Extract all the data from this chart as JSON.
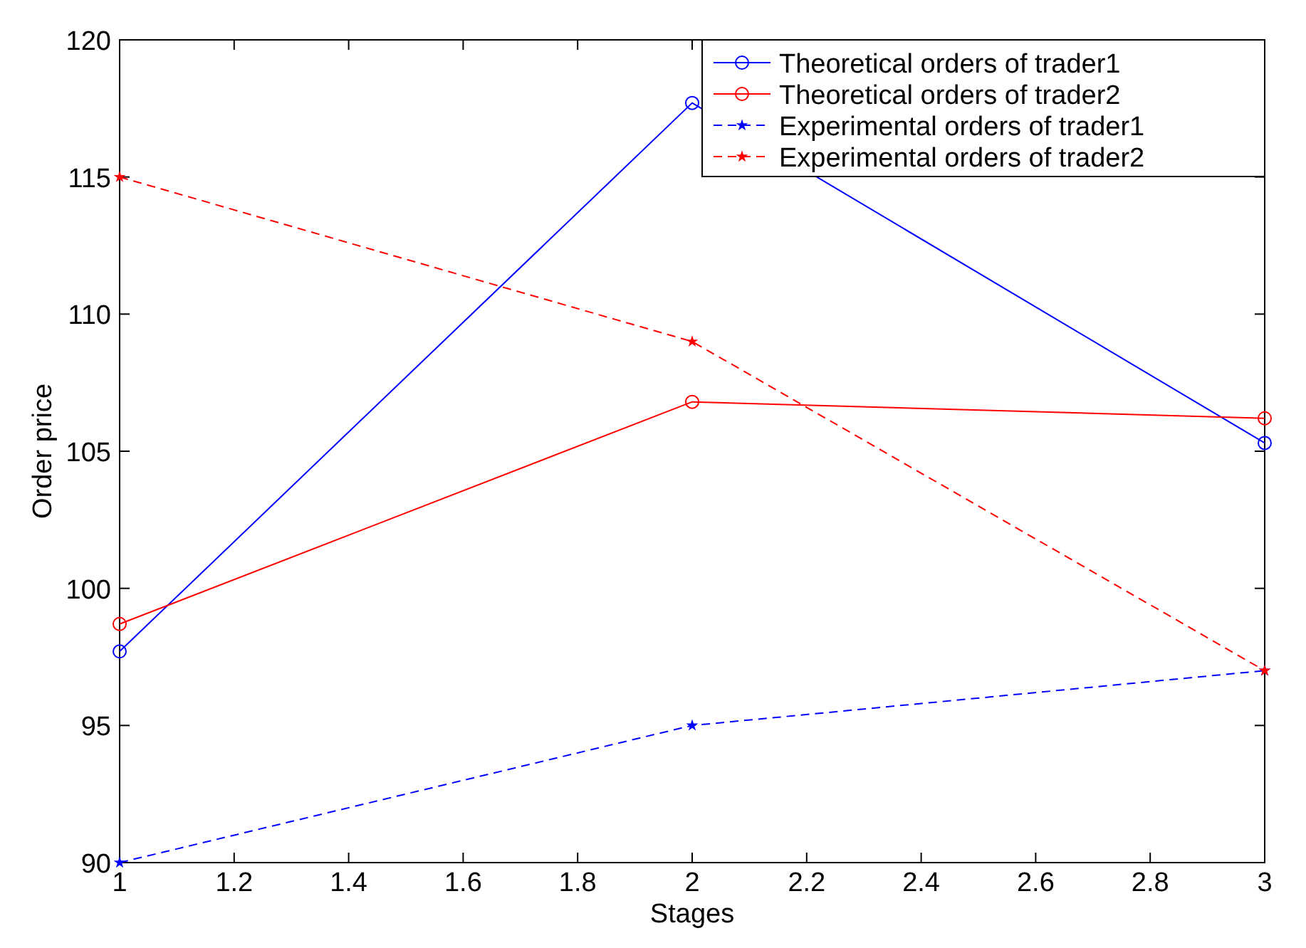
{
  "chart_data": {
    "type": "line",
    "xlabel": "Stages",
    "ylabel": "Order price",
    "x": [
      1,
      2,
      3
    ],
    "xlim": [
      1,
      3
    ],
    "xticks": [
      1,
      {
        "value": 1.2,
        "label": "1.2"
      },
      {
        "value": 1.4,
        "label": "1.4"
      },
      {
        "value": 1.6,
        "label": "1.6"
      },
      {
        "value": 1.8,
        "label": "1.8"
      },
      2,
      {
        "value": 2.2,
        "label": "2.2"
      },
      {
        "value": 2.4,
        "label": "2.4"
      },
      {
        "value": 2.6,
        "label": "2.6"
      },
      {
        "value": 2.8,
        "label": "2.8"
      },
      3
    ],
    "ylim": [
      90,
      120
    ],
    "yticks": [
      90,
      95,
      100,
      105,
      110,
      115,
      120
    ],
    "grid": false,
    "legend": "top right",
    "series": [
      {
        "name": "Theoretical orders of trader1",
        "color": "#0000ff",
        "values": [
          97.7,
          117.7,
          105.3
        ],
        "marker": "circle",
        "line_style": "solid"
      },
      {
        "name": "Theoretical orders of trader2",
        "color": "#ff0000",
        "values": [
          98.7,
          106.8,
          106.2
        ],
        "marker": "circle",
        "line_style": "solid"
      },
      {
        "name": "Experimental orders of trader1",
        "color": "#0000ff",
        "values": [
          90,
          95,
          97
        ],
        "marker": "star",
        "line_style": "dashed"
      },
      {
        "name": "Experimental orders of trader2",
        "color": "#ff0000",
        "values": [
          115,
          109,
          97
        ],
        "marker": "star",
        "line_style": "dashed"
      }
    ]
  }
}
